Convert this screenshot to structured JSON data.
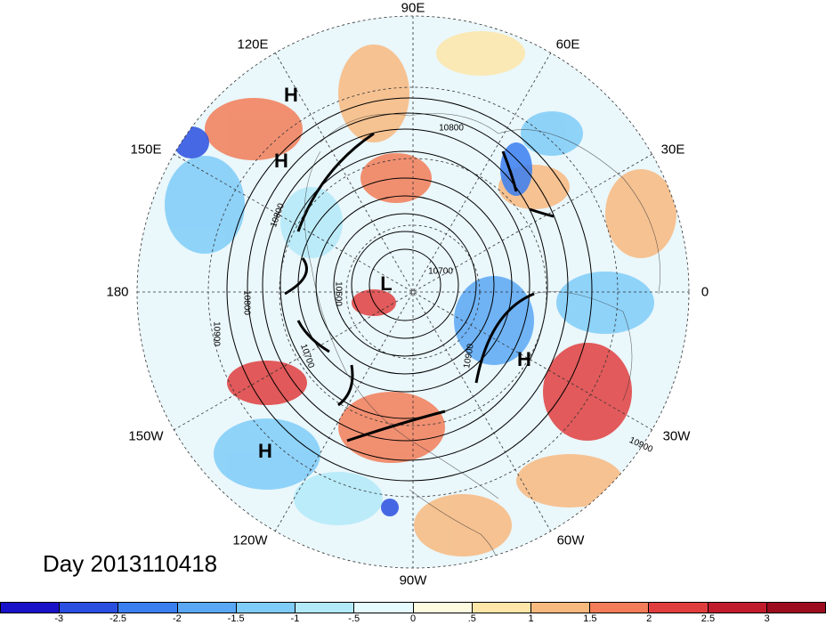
{
  "title": "Day 2013110418",
  "longitude_labels": {
    "lon_90e": "90E",
    "lon_120e": "120E",
    "lon_60e": "60E",
    "lon_150e": "150E",
    "lon_30e": "30E",
    "lon_180": "180",
    "lon_0": "0",
    "lon_150w": "150W",
    "lon_30w": "30W",
    "lon_120w": "120W",
    "lon_60w": "60W",
    "lon_90w": "90W"
  },
  "pressure_centers": [
    "H",
    "H",
    "L",
    "H",
    "H"
  ],
  "contour_labels": [
    "10800",
    "10800",
    "10800",
    "10900",
    "10900",
    "10900",
    "10700",
    "10600",
    "10700"
  ],
  "colorbar": {
    "ticks": [
      "-3",
      "-2.5",
      "-2",
      "-1.5",
      "-1",
      "-.5",
      "0",
      ".5",
      "1",
      "1.5",
      "2",
      "2.5",
      "3"
    ],
    "colors": [
      "#1a12c8",
      "#2a4fe0",
      "#3a7ff0",
      "#5aa8f5",
      "#7fccf8",
      "#b3eaf9",
      "#e6fbff",
      "#fffbe0",
      "#fde6a8",
      "#f8b97f",
      "#f27d58",
      "#e03e3e",
      "#c01c2c",
      "#9c0c1e"
    ]
  }
}
